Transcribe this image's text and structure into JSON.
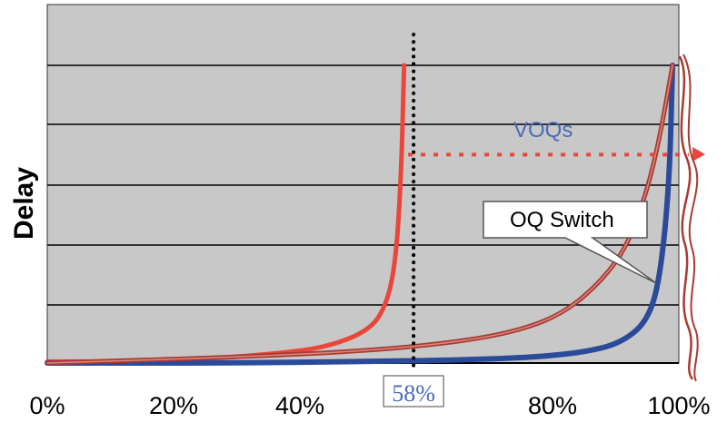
{
  "chart_data": {
    "type": "line",
    "title": "",
    "xlabel": "",
    "ylabel": "Delay",
    "xlim": [
      0,
      100
    ],
    "ylim": [
      0,
      100
    ],
    "x_ticks": [
      "0%",
      "20%",
      "40%",
      "58%",
      "80%",
      "100%"
    ],
    "x_tick_values": [
      0,
      20,
      40,
      58,
      80,
      100
    ],
    "grid": {
      "horizontal": true,
      "vertical": false
    },
    "colors": {
      "plot_background": "#c8c8c8",
      "gridline": "#000000",
      "marker_line": "#000000",
      "red_series": "#e8473a",
      "blue_series": "#2a4a9a",
      "oq_series": "#a83a32",
      "voq_arrow": "#e8473a",
      "marker_label": "#4a6ab8",
      "voq_label": "#4a6ab8",
      "callout_border": "#555555"
    },
    "series": [
      {
        "id": "red",
        "x": [
          0,
          10,
          20,
          30,
          40,
          45,
          50,
          53,
          55,
          56,
          56.5
        ],
        "y": [
          0.5,
          0.5,
          1,
          2,
          4,
          6,
          10,
          16,
          30,
          60,
          100
        ]
      },
      {
        "id": "blue",
        "x": [
          0,
          30,
          50,
          65,
          78,
          86,
          91,
          95,
          97,
          98.5,
          99
        ],
        "y": [
          0,
          0,
          0.5,
          1,
          2,
          4,
          7,
          14,
          28,
          60,
          100
        ]
      },
      {
        "id": "oq",
        "x": [
          0,
          30,
          50,
          65,
          75,
          82,
          88,
          92,
          95,
          97,
          99
        ],
        "y": [
          0,
          2,
          4,
          7,
          11,
          17,
          28,
          40,
          58,
          76,
          100
        ]
      }
    ],
    "marker": {
      "x": 58,
      "label": "58%",
      "style": "dotted"
    },
    "annotations": [
      {
        "id": "voq",
        "text": "VOQs",
        "y": 70,
        "x_from": 58,
        "x_to": 102
      },
      {
        "id": "oq",
        "text": "OQ Switch",
        "points_to_x": 96
      }
    ]
  }
}
